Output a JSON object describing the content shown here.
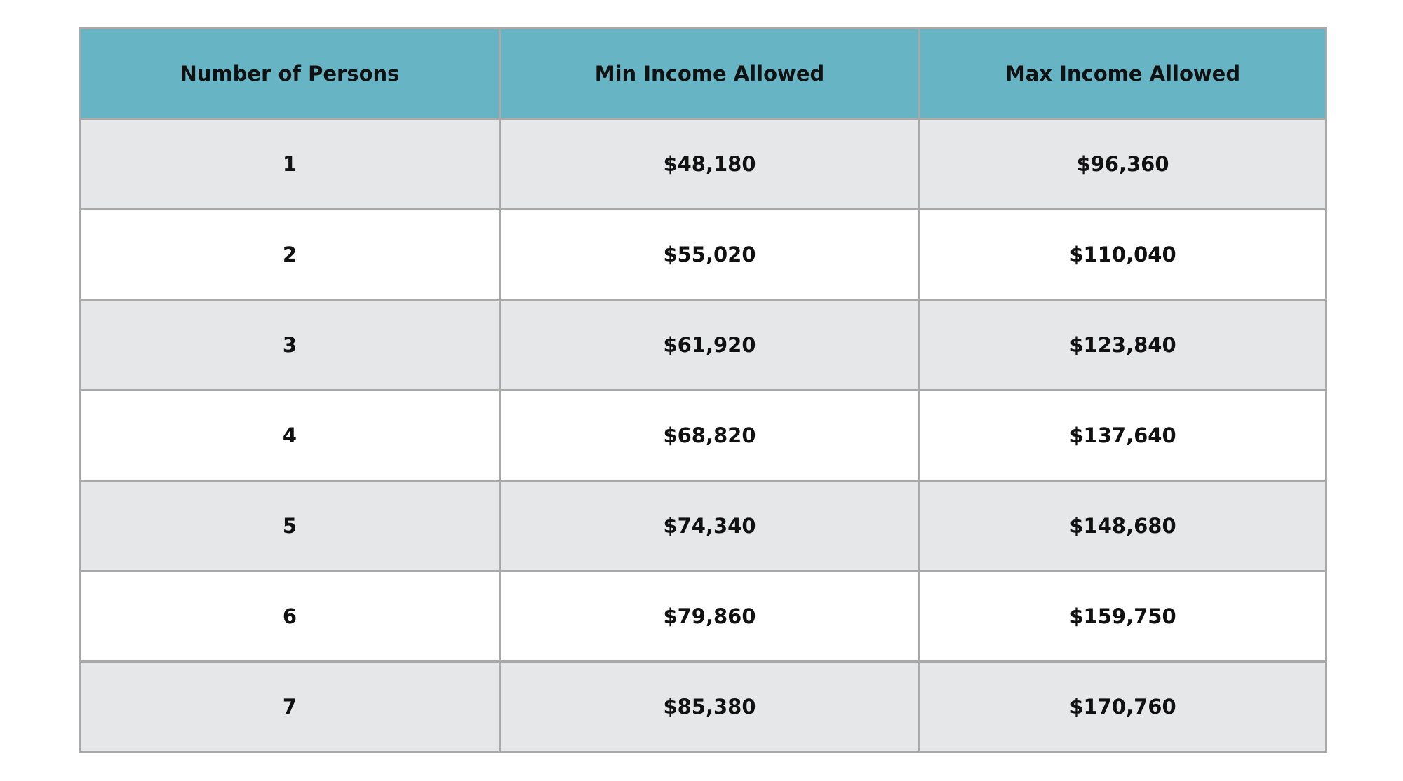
{
  "table": {
    "header": [
      "Number of Persons",
      "Min Income Allowed",
      "Max Income Allowed"
    ],
    "rows": [
      [
        "1",
        "$48,180",
        "$96,360"
      ],
      [
        "2",
        "$55,020",
        "$110,040"
      ],
      [
        "3",
        "$61,920",
        "$123,840"
      ],
      [
        "4",
        "$68,820",
        "$137,640"
      ],
      [
        "5",
        "$74,340",
        "$148,680"
      ],
      [
        "6",
        "$79,860",
        "$159,750"
      ],
      [
        "7",
        "$85,380",
        "$170,760"
      ]
    ]
  }
}
